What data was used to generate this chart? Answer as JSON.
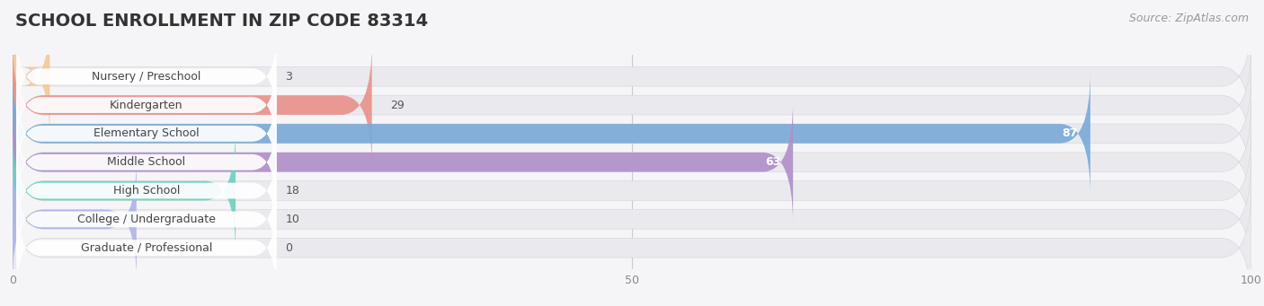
{
  "title": "SCHOOL ENROLLMENT IN ZIP CODE 83314",
  "source": "Source: ZipAtlas.com",
  "categories": [
    "Nursery / Preschool",
    "Kindergarten",
    "Elementary School",
    "Middle School",
    "High School",
    "College / Undergraduate",
    "Graduate / Professional"
  ],
  "values": [
    3,
    29,
    87,
    63,
    18,
    10,
    0
  ],
  "bar_colors": [
    "#f5c89a",
    "#e8928c",
    "#7aaad8",
    "#b090c8",
    "#70cfc0",
    "#b0b4e8",
    "#f0a0b8"
  ],
  "background_color": "#f5f5f8",
  "row_bg_color": "#eaeaee",
  "label_bg_color": "#ffffff",
  "xlim": [
    0,
    100
  ],
  "xticks": [
    0,
    50,
    100
  ],
  "title_fontsize": 14,
  "source_fontsize": 9,
  "label_fontsize": 9,
  "value_fontsize": 9,
  "bar_height": 0.68
}
